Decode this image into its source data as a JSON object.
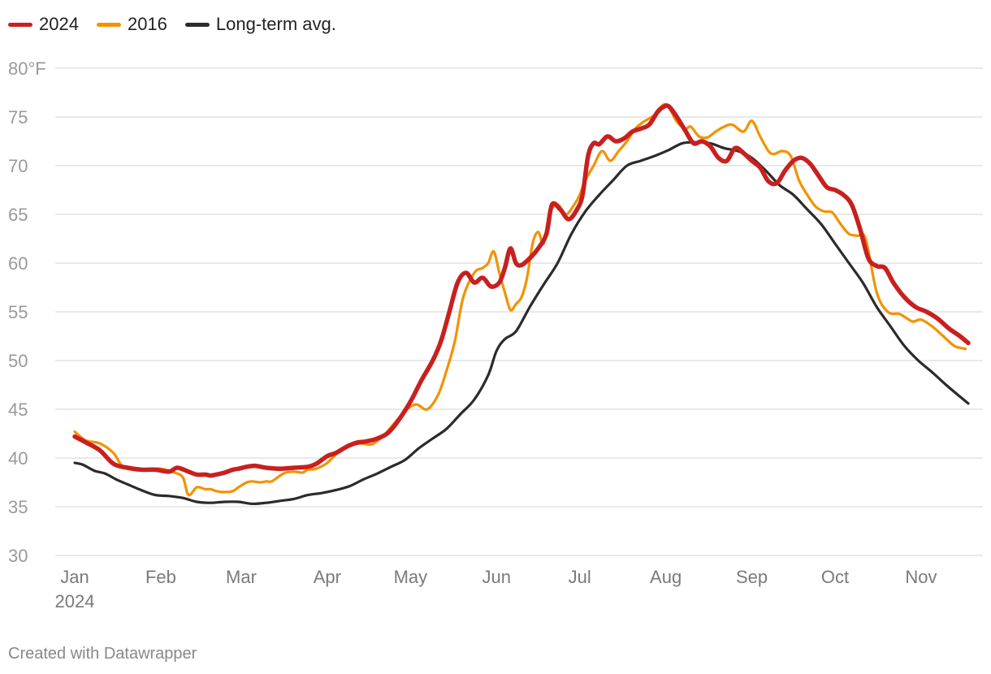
{
  "legend": [
    {
      "name": "2024",
      "color": "#c8201f"
    },
    {
      "name": "2016",
      "color": "#f39200"
    },
    {
      "name": "Long-term avg.",
      "color": "#2c2a2a"
    }
  ],
  "credit": "Created with Datawrapper",
  "chart_data": {
    "type": "line",
    "ylim": [
      30,
      80
    ],
    "xlim": [
      1,
      323
    ],
    "y_ticks": [
      {
        "value": 80,
        "label": "80°F"
      },
      {
        "value": 75,
        "label": "75"
      },
      {
        "value": 70,
        "label": "70"
      },
      {
        "value": 65,
        "label": "65"
      },
      {
        "value": 60,
        "label": "60"
      },
      {
        "value": 55,
        "label": "55"
      },
      {
        "value": 50,
        "label": "50"
      },
      {
        "value": 45,
        "label": "45"
      },
      {
        "value": 40,
        "label": "40"
      },
      {
        "value": 35,
        "label": "35"
      },
      {
        "value": 30,
        "label": "30"
      }
    ],
    "x_ticks": [
      {
        "day": 1,
        "label": "Jan",
        "sublabel": "2024"
      },
      {
        "day": 32,
        "label": "Feb"
      },
      {
        "day": 61,
        "label": "Mar"
      },
      {
        "day": 92,
        "label": "Apr"
      },
      {
        "day": 122,
        "label": "May"
      },
      {
        "day": 153,
        "label": "Jun"
      },
      {
        "day": 183,
        "label": "Jul"
      },
      {
        "day": 214,
        "label": "Aug"
      },
      {
        "day": 245,
        "label": "Sep"
      },
      {
        "day": 275,
        "label": "Oct"
      },
      {
        "day": 306,
        "label": "Nov"
      }
    ],
    "grid": true,
    "legend_position": "top-left",
    "series": [
      {
        "name": "Long-term avg.",
        "color": "#2c2a2a",
        "x": [
          1,
          4,
          8,
          12,
          16,
          20,
          25,
          30,
          35,
          40,
          45,
          50,
          55,
          60,
          65,
          70,
          75,
          80,
          85,
          90,
          95,
          100,
          105,
          110,
          115,
          120,
          125,
          130,
          135,
          140,
          145,
          150,
          153,
          156,
          160,
          165,
          170,
          175,
          180,
          185,
          190,
          195,
          200,
          205,
          210,
          215,
          220,
          225,
          230,
          235,
          240,
          245,
          250,
          255,
          260,
          265,
          270,
          275,
          280,
          285,
          290,
          295,
          300,
          305,
          310,
          315,
          320,
          323
        ],
        "y": [
          39.5,
          39.3,
          38.7,
          38.4,
          37.8,
          37.3,
          36.7,
          36.2,
          36.1,
          35.9,
          35.5,
          35.4,
          35.5,
          35.5,
          35.3,
          35.4,
          35.6,
          35.8,
          36.2,
          36.4,
          36.7,
          37.1,
          37.8,
          38.4,
          39.1,
          39.8,
          41.0,
          42.0,
          43.0,
          44.5,
          46.0,
          48.5,
          51.0,
          52.2,
          53.0,
          55.5,
          57.8,
          60.0,
          63.0,
          65.3,
          67.0,
          68.5,
          70.0,
          70.5,
          71.0,
          71.6,
          72.3,
          72.4,
          72.3,
          71.8,
          71.5,
          70.8,
          69.5,
          68.0,
          67.0,
          65.5,
          64.0,
          62.0,
          60.0,
          58.0,
          55.5,
          53.5,
          51.5,
          50.0,
          48.8,
          47.5,
          46.3,
          45.6
        ]
      },
      {
        "name": "2016",
        "color": "#f39200",
        "x": [
          1,
          5,
          10,
          15,
          18,
          22,
          27,
          32,
          37,
          40,
          42,
          45,
          48,
          50,
          52,
          55,
          58,
          60,
          63,
          65,
          68,
          70,
          72,
          75,
          77,
          80,
          83,
          85,
          88,
          92,
          96,
          100,
          104,
          108,
          112,
          116,
          120,
          124,
          128,
          132,
          135,
          138,
          141,
          145,
          148,
          150,
          152,
          154,
          156,
          158,
          160,
          162,
          164,
          166,
          168,
          170,
          172,
          175,
          178,
          181,
          183,
          185,
          188,
          191,
          194,
          197,
          200,
          203,
          206,
          210,
          214,
          218,
          221,
          223,
          226,
          229,
          232,
          235,
          238,
          242,
          245,
          248,
          251,
          253,
          256,
          259,
          262,
          265,
          268,
          271,
          274,
          277,
          280,
          283,
          286,
          290,
          294,
          298,
          300,
          303,
          306,
          310,
          314,
          318,
          322
        ],
        "y": [
          42.7,
          41.8,
          41.5,
          40.5,
          39.2,
          38.8,
          38.8,
          38.9,
          38.5,
          38.0,
          36.2,
          37.0,
          36.8,
          36.8,
          36.6,
          36.5,
          36.6,
          37.0,
          37.5,
          37.6,
          37.5,
          37.6,
          37.6,
          38.2,
          38.5,
          38.6,
          38.5,
          38.8,
          38.9,
          39.5,
          40.6,
          41.2,
          41.5,
          41.4,
          42.2,
          43.5,
          44.8,
          45.5,
          45.0,
          46.5,
          49.0,
          52.0,
          56.5,
          59.0,
          59.5,
          60.0,
          61.2,
          59.0,
          57.0,
          55.2,
          55.8,
          56.5,
          58.5,
          62.0,
          63.2,
          62.0,
          65.0,
          66.0,
          65.0,
          66.0,
          67.0,
          68.5,
          70.0,
          71.5,
          70.5,
          71.5,
          72.5,
          73.8,
          74.5,
          75.2,
          76.3,
          74.5,
          73.8,
          74.0,
          73.0,
          72.9,
          73.5,
          74.0,
          74.2,
          73.5,
          74.6,
          73.0,
          71.5,
          71.2,
          71.5,
          71.0,
          68.5,
          67.0,
          65.8,
          65.3,
          65.2,
          64.0,
          63.0,
          62.8,
          62.5,
          57.0,
          55.0,
          54.8,
          54.5,
          54.0,
          54.2,
          53.5,
          52.5,
          51.5,
          51.2
        ]
      },
      {
        "name": "2024",
        "color": "#c8201f",
        "x": [
          1,
          5,
          10,
          15,
          20,
          25,
          30,
          35,
          38,
          42,
          45,
          48,
          50,
          52,
          55,
          58,
          60,
          63,
          66,
          70,
          75,
          80,
          85,
          88,
          92,
          95,
          98,
          100,
          103,
          106,
          110,
          114,
          118,
          122,
          126,
          130,
          133,
          136,
          139,
          142,
          145,
          148,
          151,
          154,
          156,
          158,
          160,
          162,
          165,
          168,
          171,
          173,
          176,
          179,
          182,
          184,
          186,
          188,
          190,
          193,
          196,
          199,
          202,
          205,
          208,
          211,
          213,
          215,
          218,
          221,
          224,
          227,
          230,
          233,
          236,
          239,
          242,
          245,
          248,
          251,
          254,
          257,
          260,
          263,
          266,
          269,
          272,
          275,
          278,
          281,
          284,
          287,
          290,
          293,
          296,
          300,
          304,
          308,
          312,
          316,
          320,
          323
        ],
        "y": [
          42.2,
          41.6,
          40.8,
          39.4,
          39.0,
          38.8,
          38.8,
          38.6,
          39.0,
          38.6,
          38.3,
          38.3,
          38.2,
          38.3,
          38.5,
          38.8,
          38.9,
          39.1,
          39.2,
          39.0,
          38.9,
          39.0,
          39.1,
          39.4,
          40.2,
          40.5,
          41.0,
          41.3,
          41.6,
          41.7,
          42.0,
          42.6,
          44.0,
          45.8,
          48.0,
          50.0,
          52.0,
          55.0,
          58.0,
          59.0,
          58.0,
          58.5,
          57.6,
          58.0,
          59.5,
          61.5,
          60.0,
          59.8,
          60.5,
          61.5,
          63.0,
          66.0,
          65.5,
          64.5,
          65.5,
          67.0,
          71.0,
          72.3,
          72.2,
          73.0,
          72.5,
          72.8,
          73.5,
          73.8,
          74.2,
          75.5,
          76.0,
          76.1,
          75.0,
          73.6,
          72.3,
          72.5,
          72.0,
          70.8,
          70.5,
          71.8,
          71.3,
          70.5,
          69.8,
          68.4,
          68.2,
          69.5,
          70.5,
          70.8,
          70.2,
          69.0,
          67.8,
          67.5,
          67.0,
          66.0,
          63.5,
          60.5,
          59.7,
          59.5,
          58.0,
          56.5,
          55.5,
          55.0,
          54.3,
          53.3,
          52.5,
          51.8
        ]
      }
    ]
  }
}
